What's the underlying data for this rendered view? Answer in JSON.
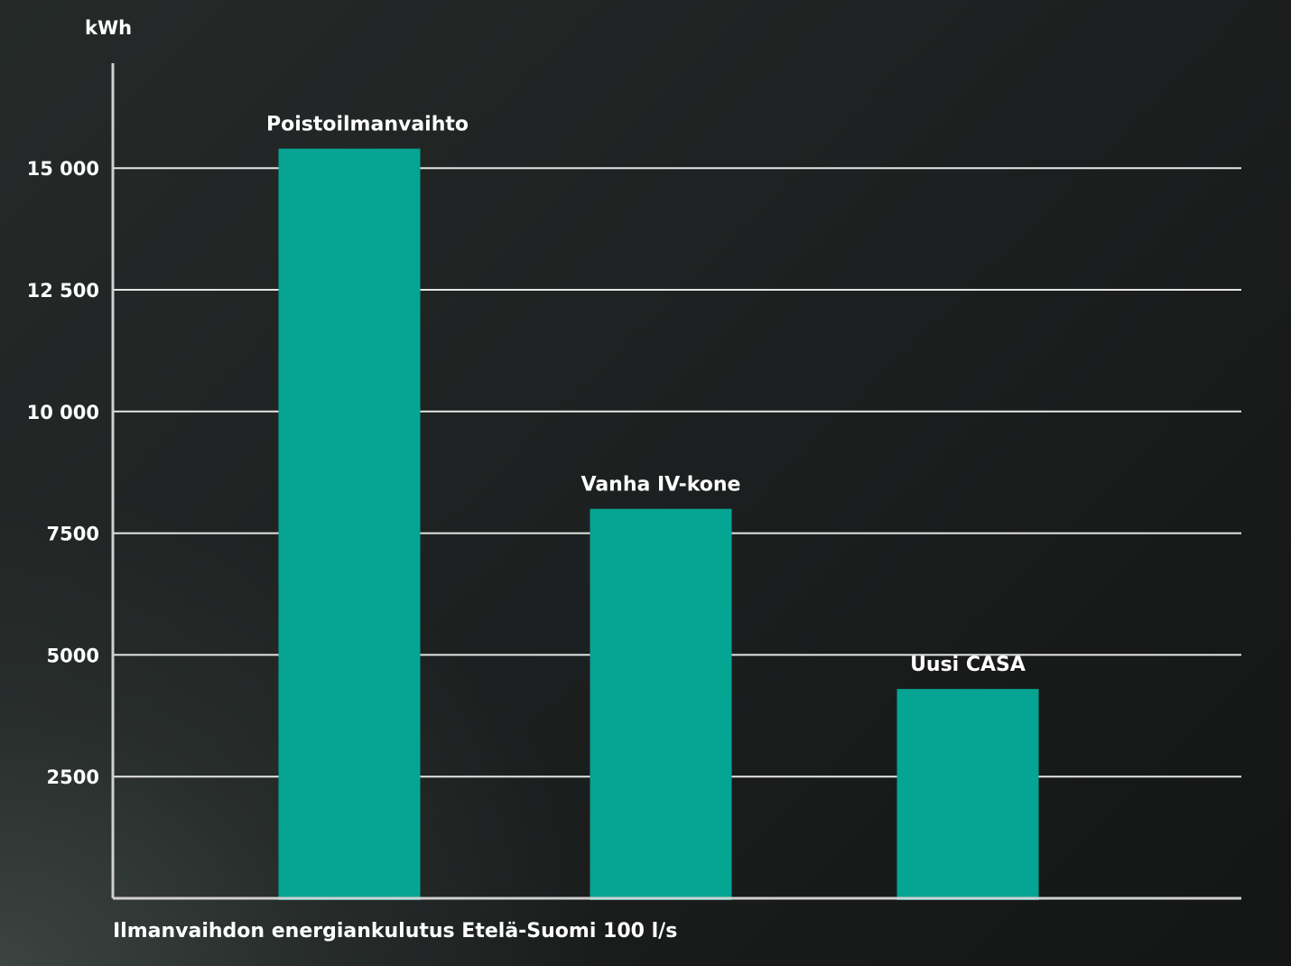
{
  "chart_data": {
    "type": "bar",
    "ylabel": "kWh",
    "caption": "Ilmanvaihdon energiankulutus Etelä-Suomi 100 l/s",
    "categories": [
      "Poistoilmanvaihto",
      "Vanha IV-kone",
      "Uusi CASA"
    ],
    "values": [
      15400,
      8000,
      4300
    ],
    "yticks": [
      2500,
      5000,
      7500,
      10000,
      12500,
      15000
    ],
    "ytick_labels": [
      "2500",
      "5000",
      "7500",
      "10 000",
      "12 500",
      "15 000"
    ],
    "ylim": [
      0,
      17000
    ],
    "grid": true,
    "bar_color": "#05a493",
    "gridline_color": "#e6e6e6"
  }
}
